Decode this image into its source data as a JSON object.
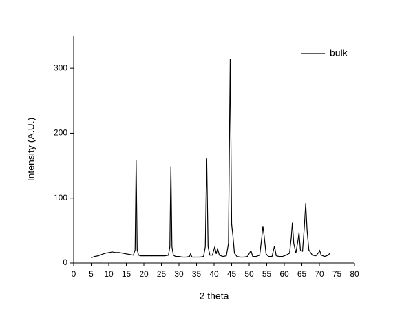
{
  "chart_data": {
    "type": "line",
    "xlabel": "2 theta",
    "ylabel": "Intensity (A.U.)",
    "x": [
      5,
      6,
      7,
      8,
      9,
      10,
      11,
      12,
      13,
      14,
      15,
      16,
      17,
      17.5,
      17.8,
      18.1,
      18.5,
      19,
      20,
      21,
      22,
      23,
      24,
      25,
      26,
      27,
      27.4,
      27.7,
      28,
      28.4,
      29,
      30,
      31,
      32,
      33,
      33.3,
      33.7,
      35,
      36,
      37,
      37.5,
      37.9,
      38.3,
      38.8,
      39.5,
      40.2,
      40.6,
      41,
      41.5,
      42.5,
      43.5,
      44.1,
      44.6,
      45,
      45.4,
      45.8,
      46.5,
      47.5,
      48.5,
      49.5,
      50.5,
      51,
      52,
      53,
      53.6,
      53.9,
      54.3,
      54.8,
      55.5,
      56.5,
      57.2,
      57.7,
      58.5,
      59.5,
      60.5,
      61.5,
      62,
      62.3,
      62.7,
      63.3,
      63.9,
      64.2,
      64.6,
      65.2,
      65.7,
      66.1,
      66.5,
      67,
      68,
      69,
      69.8,
      70.1,
      70.5,
      71.5,
      72.5,
      73
    ],
    "series": [
      {
        "name": "bulk",
        "color": "#000000",
        "values": [
          8,
          10,
          11,
          13,
          15,
          16,
          17,
          16,
          16,
          15,
          14,
          13,
          12,
          20,
          158,
          20,
          12,
          11,
          11,
          11,
          11,
          11,
          11,
          11,
          11,
          12,
          25,
          149,
          25,
          12,
          10,
          10,
          9,
          9,
          10,
          14,
          9,
          9,
          9,
          10,
          25,
          161,
          25,
          12,
          12,
          25,
          14,
          22,
          12,
          10,
          11,
          30,
          315,
          60,
          40,
          15,
          10,
          9,
          9,
          10,
          19,
          10,
          10,
          12,
          40,
          57,
          40,
          14,
          10,
          10,
          26,
          11,
          10,
          10,
          12,
          15,
          40,
          62,
          30,
          15,
          35,
          47,
          20,
          18,
          55,
          92,
          50,
          20,
          12,
          11,
          16,
          19,
          12,
          10,
          12,
          15
        ]
      }
    ],
    "xlim": [
      0,
      80
    ],
    "xticks": [
      0,
      5,
      10,
      15,
      20,
      25,
      30,
      35,
      40,
      45,
      50,
      55,
      60,
      65,
      70,
      75,
      80
    ],
    "ylim": [
      0,
      350
    ],
    "yticks": [
      0,
      100,
      200,
      300
    ],
    "legend": "top-right"
  }
}
